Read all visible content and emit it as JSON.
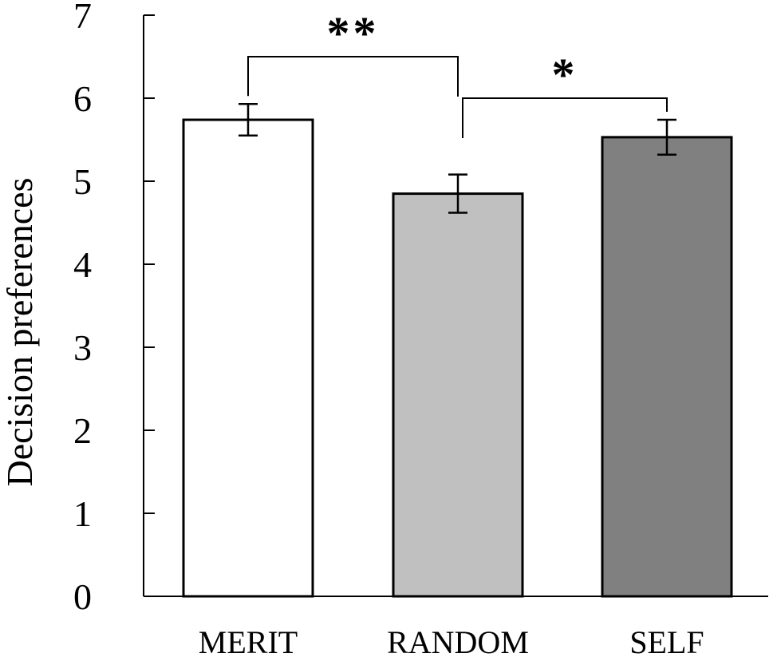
{
  "chart_data": {
    "type": "bar",
    "ylabel": "Decision preferences",
    "ylim": [
      0,
      7
    ],
    "yticks": [
      0,
      1,
      2,
      3,
      4,
      5,
      6,
      7
    ],
    "categories": [
      "MERIT",
      "RANDOM",
      "SELF"
    ],
    "values": [
      5.74,
      4.85,
      5.53
    ],
    "errors": [
      0.19,
      0.23,
      0.21
    ],
    "bar_colors": [
      "#ffffff",
      "#c0c0c0",
      "#808080"
    ],
    "grid": false,
    "legend": "none",
    "significance": [
      {
        "from": "MERIT",
        "to": "RANDOM",
        "label": "**",
        "y": 6.5
      },
      {
        "from": "RANDOM",
        "to": "SELF",
        "label": "*",
        "y": 6.0
      }
    ]
  }
}
